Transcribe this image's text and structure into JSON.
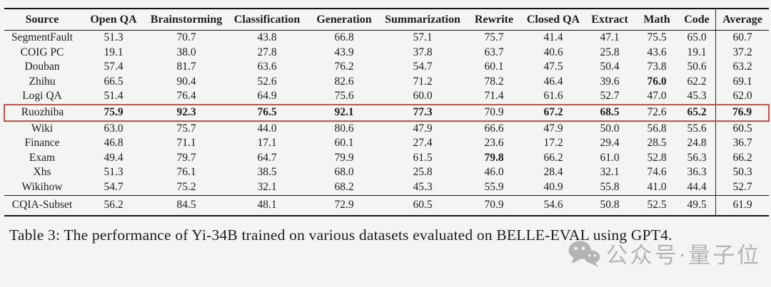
{
  "table": {
    "columns": [
      "Source",
      "Open QA",
      "Brainstorming",
      "Classification",
      "Generation",
      "Summarization",
      "Rewrite",
      "Closed QA",
      "Extract",
      "Math",
      "Code",
      "Average"
    ],
    "rows": [
      {
        "source": "SegmentFault",
        "values": [
          "51.3",
          "70.7",
          "43.8",
          "66.8",
          "57.1",
          "75.7",
          "41.4",
          "47.1",
          "75.5",
          "65.0",
          "60.7"
        ],
        "bold": [],
        "highlighted": false,
        "separator_above": false
      },
      {
        "source": "COIG PC",
        "values": [
          "19.1",
          "38.0",
          "27.8",
          "43.9",
          "37.8",
          "63.7",
          "40.6",
          "25.8",
          "43.6",
          "19.1",
          "37.2"
        ],
        "bold": [],
        "highlighted": false,
        "separator_above": false
      },
      {
        "source": "Douban",
        "values": [
          "57.4",
          "81.7",
          "63.6",
          "76.2",
          "54.7",
          "60.1",
          "47.5",
          "50.4",
          "73.8",
          "50.6",
          "63.2"
        ],
        "bold": [],
        "highlighted": false,
        "separator_above": false
      },
      {
        "source": "Zhihu",
        "values": [
          "66.5",
          "90.4",
          "52.6",
          "82.6",
          "71.2",
          "78.2",
          "46.4",
          "39.6",
          "76.0",
          "62.2",
          "69.1"
        ],
        "bold": [
          8
        ],
        "highlighted": false,
        "separator_above": false
      },
      {
        "source": "Logi QA",
        "values": [
          "51.4",
          "76.4",
          "64.9",
          "75.6",
          "60.0",
          "71.4",
          "61.6",
          "52.7",
          "47.0",
          "45.3",
          "62.0"
        ],
        "bold": [],
        "highlighted": false,
        "separator_above": false
      },
      {
        "source": "Ruozhiba",
        "values": [
          "75.9",
          "92.3",
          "76.5",
          "92.1",
          "77.3",
          "70.9",
          "67.2",
          "68.5",
          "72.6",
          "65.2",
          "76.9"
        ],
        "bold": [
          0,
          1,
          2,
          3,
          4,
          6,
          7,
          9,
          10
        ],
        "highlighted": true,
        "separator_above": false
      },
      {
        "source": "Wiki",
        "values": [
          "63.0",
          "75.7",
          "44.0",
          "80.6",
          "47.9",
          "66.6",
          "47.9",
          "50.0",
          "56.8",
          "55.6",
          "60.5"
        ],
        "bold": [],
        "highlighted": false,
        "separator_above": false
      },
      {
        "source": "Finance",
        "values": [
          "46.8",
          "71.1",
          "17.1",
          "60.1",
          "27.4",
          "23.6",
          "17.2",
          "29.4",
          "28.5",
          "24.8",
          "36.7"
        ],
        "bold": [],
        "highlighted": false,
        "separator_above": false
      },
      {
        "source": "Exam",
        "values": [
          "49.4",
          "79.7",
          "64.7",
          "79.9",
          "61.5",
          "79.8",
          "66.2",
          "61.0",
          "52.8",
          "56.3",
          "66.2"
        ],
        "bold": [
          5
        ],
        "highlighted": false,
        "separator_above": false
      },
      {
        "source": "Xhs",
        "values": [
          "51.3",
          "76.1",
          "38.5",
          "68.0",
          "25.8",
          "46.0",
          "28.4",
          "32.1",
          "74.6",
          "36.3",
          "50.3"
        ],
        "bold": [],
        "highlighted": false,
        "separator_above": false
      },
      {
        "source": "Wikihow",
        "values": [
          "54.7",
          "75.2",
          "32.1",
          "68.2",
          "45.3",
          "55.9",
          "40.9",
          "55.8",
          "41.0",
          "44.4",
          "52.7"
        ],
        "bold": [],
        "highlighted": false,
        "separator_above": false
      },
      {
        "source": "CQIA-Subset",
        "values": [
          "56.2",
          "84.5",
          "48.1",
          "72.9",
          "60.5",
          "70.9",
          "54.6",
          "50.8",
          "52.5",
          "49.5",
          "61.9"
        ],
        "bold": [],
        "highlighted": false,
        "separator_above": true
      }
    ]
  },
  "caption": "Table 3: The performance of Yi-34B trained on various datasets evaluated on BELLE-EVAL using GPT4.",
  "watermark": {
    "icon": "wechat-icon",
    "text": "公众号·量子位"
  },
  "colors": {
    "background": "#f4f4f2",
    "ink": "#1c1c1c",
    "highlight_border": "#c9514b",
    "watermark": "#a9a9a9"
  }
}
